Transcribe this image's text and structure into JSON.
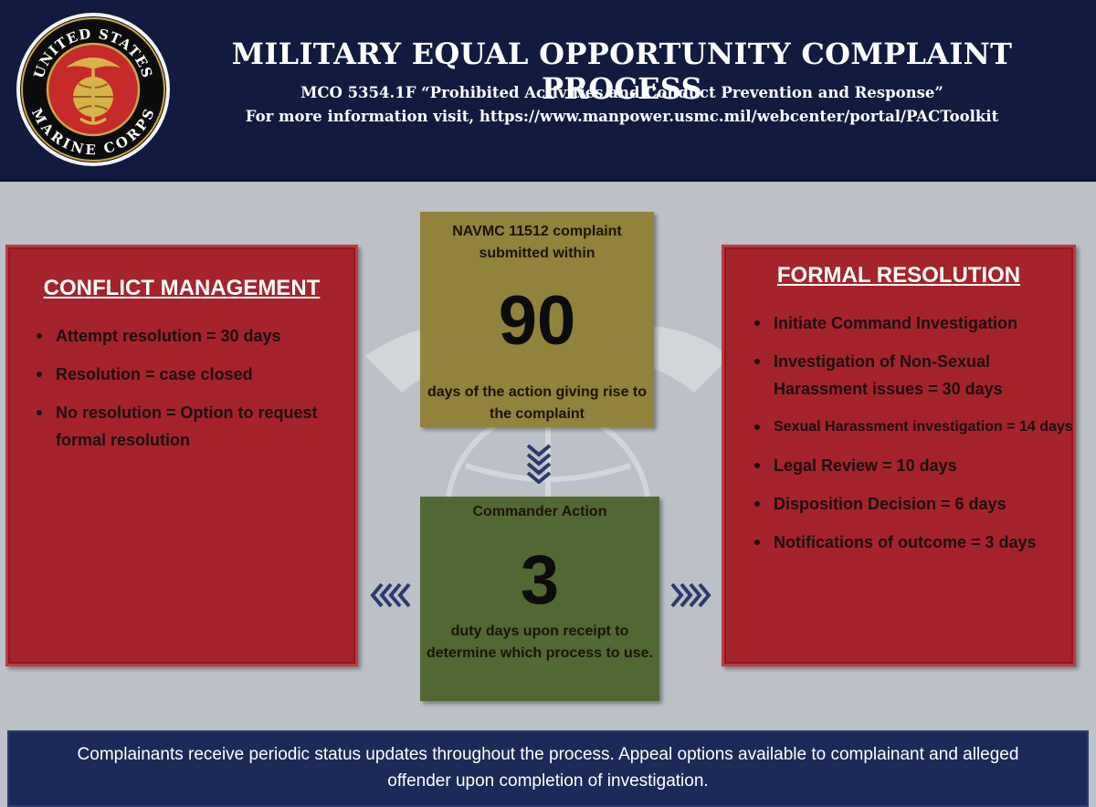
{
  "header": {
    "title": "MILITARY EQUAL OPPORTUNITY COMPLAINT PROCESS",
    "subtitle": "MCO 5354.1F “Prohibited Activities and Conduct Prevention and Response”",
    "info": "For more information visit, https://www.manpower.usmc.mil/webcenter/portal/PACToolkit",
    "seal_text_top": "UNITED STATES",
    "seal_text_bottom": "MARINE CORPS"
  },
  "conflict_management": {
    "heading": "CONFLICT MANAGEMENT",
    "items": [
      "Attempt resolution = 30 days",
      "Resolution = case closed",
      "No resolution = Option to request formal resolution"
    ]
  },
  "complaint_box": {
    "top_text": "NAVMC 11512 complaint submitted within",
    "number": "90",
    "bottom_text": "days of the action giving rise to the complaint"
  },
  "commander_box": {
    "top_text": "Commander Action",
    "number": "3",
    "bottom_text": "duty days upon receipt to determine which process to use."
  },
  "formal_resolution": {
    "heading": "FORMAL RESOLUTION",
    "items": [
      "Initiate Command Investigation",
      "Investigation of Non-Sexual Harassment issues = 30 days",
      "Sexual Harassment investigation = 14 days",
      "Legal Review = 10 days",
      "Disposition Decision = 6 days",
      "Notifications of outcome = 3 days"
    ]
  },
  "footer": {
    "text": "Complainants receive periodic status updates throughout the process.  Appeal options available to complainant and alleged offender upon completion of investigation."
  },
  "colors": {
    "header_bg": "#121b3f",
    "panel_red": "#a5232a",
    "box_gold": "#8e7d32",
    "box_green": "#4a6228",
    "footer_bg": "#1b2a57",
    "chevron_blue": "#2b3a6e"
  },
  "icons": {
    "seal": "marine-corps-seal-icon",
    "background": "eagle-globe-anchor-emblem-icon",
    "arrow_down": "chevron-down-icon",
    "arrow_left": "chevron-left-icon",
    "arrow_right": "chevron-right-icon"
  }
}
